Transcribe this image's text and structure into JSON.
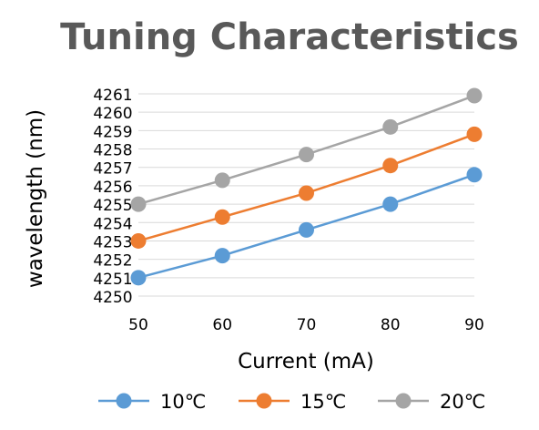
{
  "chart_data": {
    "type": "line",
    "title": "Tuning Characteristics",
    "xlabel": "Current (mA)",
    "ylabel": "wavelength (nm)",
    "x": [
      50,
      60,
      70,
      80,
      90
    ],
    "ylim": [
      4250,
      4261
    ],
    "yticks": [
      4250,
      4251,
      4252,
      4253,
      4254,
      4255,
      4256,
      4257,
      4258,
      4259,
      4260,
      4261
    ],
    "grid": true,
    "legend_position": "bottom",
    "series": [
      {
        "name": "10℃",
        "color": "#5b9bd5",
        "values": [
          4251.0,
          4252.2,
          4253.6,
          4255.0,
          4256.6
        ]
      },
      {
        "name": "15℃",
        "color": "#ed7d31",
        "values": [
          4253.0,
          4254.3,
          4255.6,
          4257.1,
          4258.8
        ]
      },
      {
        "name": "20℃",
        "color": "#a5a5a5",
        "values": [
          4255.0,
          4256.3,
          4257.7,
          4259.2,
          4260.9
        ]
      }
    ]
  }
}
